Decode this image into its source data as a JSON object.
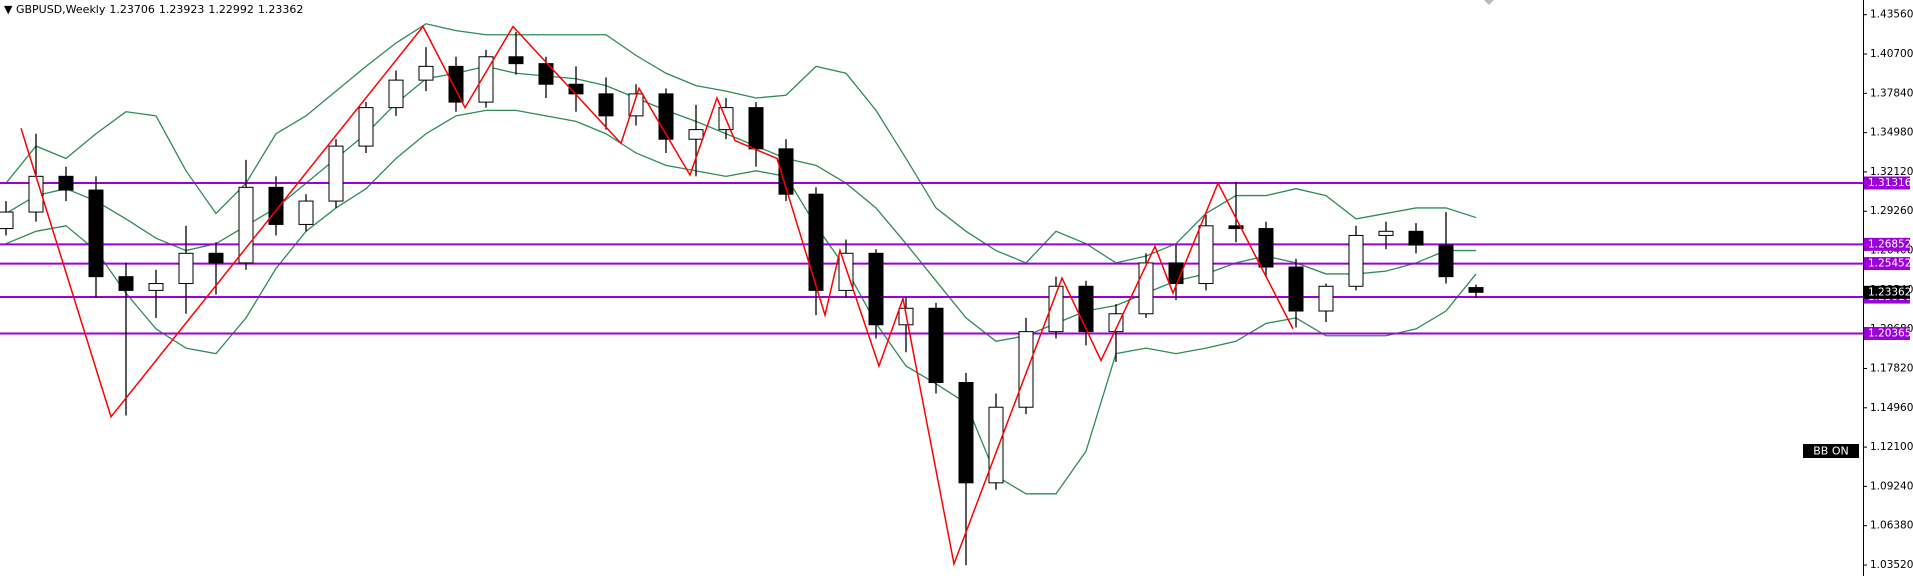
{
  "chart_data": {
    "type": "candlestick",
    "title": "GBPUSD,Weekly",
    "annotation": "BB ON",
    "ylim": [
      1.0272,
      1.4463
    ],
    "yticks": [
      {
        "value": 1.4356,
        "label": "1.43560"
      },
      {
        "value": 1.407,
        "label": "1.40700"
      },
      {
        "value": 1.3784,
        "label": "1.37840"
      },
      {
        "value": 1.3498,
        "label": "1.34980"
      },
      {
        "value": 1.3212,
        "label": "1.32120"
      },
      {
        "value": 1.2926,
        "label": "1.29260"
      },
      {
        "value": 1.264,
        "label": "1.26400"
      },
      {
        "value": 1.2354,
        "label": "1.23540"
      },
      {
        "value": 1.2068,
        "label": "1.20680"
      },
      {
        "value": 1.1782,
        "label": "1.17820"
      },
      {
        "value": 1.1496,
        "label": "1.14960"
      },
      {
        "value": 1.121,
        "label": "1.12100"
      },
      {
        "value": 1.0924,
        "label": "1.09240"
      },
      {
        "value": 1.0638,
        "label": "1.06380"
      },
      {
        "value": 1.0352,
        "label": "1.03520"
      }
    ],
    "candles": {
      "up_color": "#ffffff",
      "down_color": "#000000",
      "outline_color": "#000000",
      "open": [
        1.28,
        1.292,
        1.318,
        1.308,
        1.245,
        1.235,
        1.24,
        1.262,
        1.255,
        1.31,
        1.283,
        1.3,
        1.34,
        1.368,
        1.388,
        1.398,
        1.372,
        1.405,
        1.4,
        1.385,
        1.378,
        1.362,
        1.378,
        1.345,
        1.352,
        1.368,
        1.338,
        1.305,
        1.235,
        1.262,
        1.21,
        1.222,
        1.168,
        1.095,
        1.15,
        1.205,
        1.238,
        1.205,
        1.218,
        1.255,
        1.24,
        1.282,
        1.28,
        1.252,
        1.22,
        1.238,
        1.275,
        1.278,
        1.268,
        1.23706
      ],
      "high": [
        1.3,
        1.349,
        1.325,
        1.318,
        1.255,
        1.25,
        1.282,
        1.27,
        1.33,
        1.318,
        1.305,
        1.345,
        1.372,
        1.395,
        1.412,
        1.405,
        1.41,
        1.423,
        1.405,
        1.398,
        1.39,
        1.385,
        1.382,
        1.37,
        1.375,
        1.372,
        1.345,
        1.31,
        1.272,
        1.265,
        1.23,
        1.226,
        1.175,
        1.16,
        1.215,
        1.245,
        1.242,
        1.225,
        1.262,
        1.268,
        1.29,
        1.314,
        1.285,
        1.258,
        1.24,
        1.282,
        1.285,
        1.284,
        1.292,
        1.23923
      ],
      "low": [
        1.275,
        1.285,
        1.3,
        1.23,
        1.144,
        1.215,
        1.218,
        1.232,
        1.25,
        1.275,
        1.278,
        1.295,
        1.335,
        1.362,
        1.38,
        1.365,
        1.368,
        1.392,
        1.375,
        1.365,
        1.352,
        1.355,
        1.335,
        1.318,
        1.345,
        1.325,
        1.3,
        1.217,
        1.23,
        1.2,
        1.19,
        1.16,
        1.035,
        1.09,
        1.145,
        1.2,
        1.195,
        1.183,
        1.215,
        1.228,
        1.235,
        1.27,
        1.245,
        1.208,
        1.212,
        1.235,
        1.265,
        1.262,
        1.24,
        1.22992
      ],
      "close": [
        1.292,
        1.318,
        1.308,
        1.245,
        1.235,
        1.24,
        1.262,
        1.255,
        1.31,
        1.283,
        1.3,
        1.34,
        1.368,
        1.388,
        1.398,
        1.372,
        1.405,
        1.4,
        1.385,
        1.378,
        1.362,
        1.378,
        1.345,
        1.352,
        1.368,
        1.338,
        1.305,
        1.235,
        1.262,
        1.21,
        1.222,
        1.168,
        1.095,
        1.15,
        1.205,
        1.238,
        1.205,
        1.218,
        1.255,
        1.24,
        1.282,
        1.28,
        1.252,
        1.22,
        1.238,
        1.275,
        1.278,
        1.268,
        1.245,
        1.23362
      ]
    },
    "bands": {
      "color": "#2e8b57",
      "upper": [
        1.313,
        1.34,
        1.331,
        1.349,
        1.365,
        1.362,
        1.322,
        1.291,
        1.313,
        1.349,
        1.362,
        1.38,
        1.398,
        1.415,
        1.429,
        1.424,
        1.421,
        1.421,
        1.421,
        1.421,
        1.421,
        1.406,
        1.393,
        1.384,
        1.38,
        1.375,
        1.377,
        1.398,
        1.393,
        1.366,
        1.331,
        1.295,
        1.278,
        1.264,
        1.255,
        1.278,
        1.269,
        1.255,
        1.26,
        1.269,
        1.291,
        1.304,
        1.304,
        1.309,
        1.304,
        1.287,
        1.291,
        1.295,
        1.295,
        1.288
      ],
      "middle": [
        1.291,
        1.304,
        1.309,
        1.3,
        1.287,
        1.273,
        1.264,
        1.269,
        1.282,
        1.295,
        1.313,
        1.331,
        1.349,
        1.371,
        1.389,
        1.393,
        1.398,
        1.393,
        1.391,
        1.389,
        1.384,
        1.375,
        1.366,
        1.358,
        1.349,
        1.34,
        1.331,
        1.326,
        1.313,
        1.295,
        1.269,
        1.242,
        1.215,
        1.198,
        1.202,
        1.211,
        1.22,
        1.224,
        1.233,
        1.242,
        1.247,
        1.255,
        1.26,
        1.255,
        1.247,
        1.247,
        1.249,
        1.255,
        1.264,
        1.264
      ],
      "lower": [
        1.269,
        1.278,
        1.282,
        1.264,
        1.233,
        1.207,
        1.193,
        1.189,
        1.215,
        1.251,
        1.278,
        1.295,
        1.309,
        1.331,
        1.349,
        1.362,
        1.366,
        1.366,
        1.362,
        1.358,
        1.349,
        1.335,
        1.326,
        1.322,
        1.318,
        1.322,
        1.318,
        1.282,
        1.251,
        1.211,
        1.18,
        1.167,
        1.153,
        1.1,
        1.087,
        1.087,
        1.118,
        1.189,
        1.193,
        1.189,
        1.193,
        1.198,
        1.211,
        1.215,
        1.202,
        1.202,
        1.202,
        1.207,
        1.22,
        1.247
      ]
    },
    "zigzag": {
      "color": "#ff0000",
      "x": [
        0.5,
        3.5,
        13.9,
        15.3,
        16.9,
        20.5,
        21.1,
        22.8,
        23.7,
        24.3,
        25.7,
        27.3,
        27.8,
        29.1,
        29.9,
        31.6,
        35.2,
        36.5,
        38.3,
        38.9,
        40.4,
        42.9
      ],
      "values": [
        1.353,
        1.143,
        1.427,
        1.368,
        1.427,
        1.342,
        1.382,
        1.319,
        1.375,
        1.344,
        1.331,
        1.217,
        1.264,
        1.18,
        1.229,
        1.036,
        1.244,
        1.184,
        1.267,
        1.233,
        1.313,
        1.207
      ]
    },
    "levels": {
      "color": "#9b00d9",
      "values": [
        1.31316,
        1.26852,
        1.25452,
        1.23016,
        1.20365
      ]
    }
  }
}
